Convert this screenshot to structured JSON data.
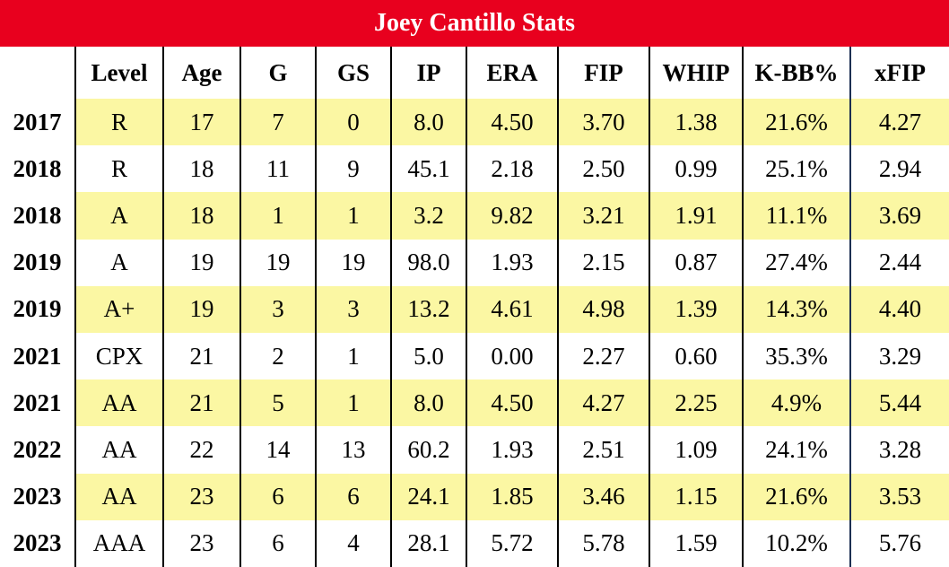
{
  "title": "Joey Cantillo Stats",
  "columns": [
    "",
    "Level",
    "Age",
    "G",
    "GS",
    "IP",
    "ERA",
    "FIP",
    "WHIP",
    "K-BB%",
    "xFIP"
  ],
  "highlight_color": "#fbf7a3",
  "title_bar_color": "#e8001e",
  "rows": [
    [
      "2017",
      "R",
      "17",
      "7",
      "0",
      "8.0",
      "4.50",
      "3.70",
      "1.38",
      "21.6%",
      "4.27"
    ],
    [
      "2018",
      "R",
      "18",
      "11",
      "9",
      "45.1",
      "2.18",
      "2.50",
      "0.99",
      "25.1%",
      "2.94"
    ],
    [
      "2018",
      "A",
      "18",
      "1",
      "1",
      "3.2",
      "9.82",
      "3.21",
      "1.91",
      "11.1%",
      "3.69"
    ],
    [
      "2019",
      "A",
      "19",
      "19",
      "19",
      "98.0",
      "1.93",
      "2.15",
      "0.87",
      "27.4%",
      "2.44"
    ],
    [
      "2019",
      "A+",
      "19",
      "3",
      "3",
      "13.2",
      "4.61",
      "4.98",
      "1.39",
      "14.3%",
      "4.40"
    ],
    [
      "2021",
      "CPX",
      "21",
      "2",
      "1",
      "5.0",
      "0.00",
      "2.27",
      "0.60",
      "35.3%",
      "3.29"
    ],
    [
      "2021",
      "AA",
      "21",
      "5",
      "1",
      "8.0",
      "4.50",
      "4.27",
      "2.25",
      "4.9%",
      "5.44"
    ],
    [
      "2022",
      "AA",
      "22",
      "14",
      "13",
      "60.2",
      "1.93",
      "2.51",
      "1.09",
      "24.1%",
      "3.28"
    ],
    [
      "2023",
      "AA",
      "23",
      "6",
      "6",
      "24.1",
      "1.85",
      "3.46",
      "1.15",
      "21.6%",
      "3.53"
    ],
    [
      "2023",
      "AAA",
      "23",
      "6",
      "4",
      "28.1",
      "5.72",
      "5.78",
      "1.59",
      "10.2%",
      "5.76"
    ]
  ]
}
